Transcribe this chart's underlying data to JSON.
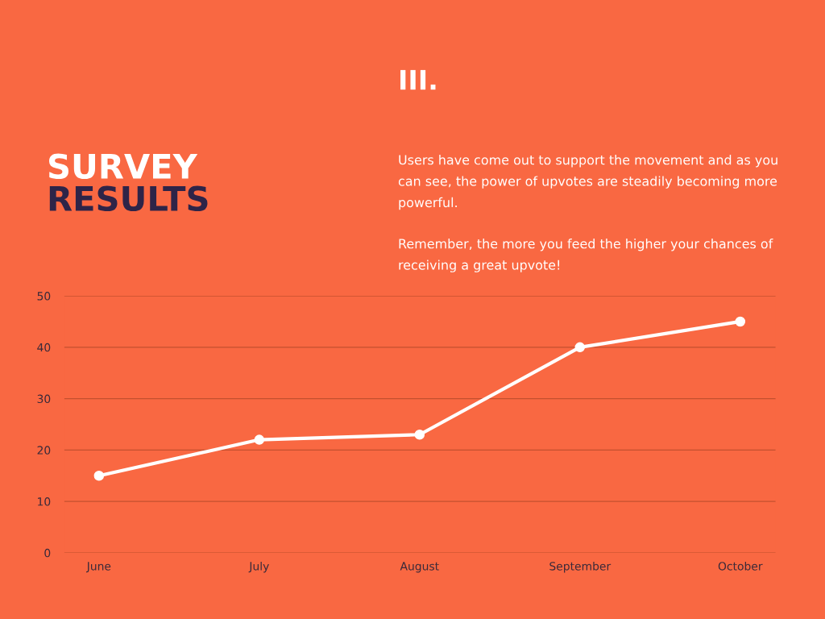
{
  "chart_data": {
    "type": "line",
    "title": "SURVEY\nRESULTS",
    "annotations": [
      "III.",
      "Users have come out to support the movement and as you\ncan see, the power of upvotes are steadily becoming more\npowerful.",
      "Remember, the more you feed the higher your chances of\nreceiving a great upvote!"
    ],
    "categories": [
      "June",
      "July",
      "August",
      "September",
      "October"
    ],
    "series": [
      {
        "color": "#ffffff",
        "values": [
          15,
          22,
          23,
          40,
          45
        ]
      }
    ],
    "ylim": [
      0,
      50
    ],
    "yticks": [
      0,
      10,
      20,
      30,
      40,
      50
    ],
    "grid": "y",
    "marker": "circle",
    "line_style": "solid",
    "legend": false
  }
}
